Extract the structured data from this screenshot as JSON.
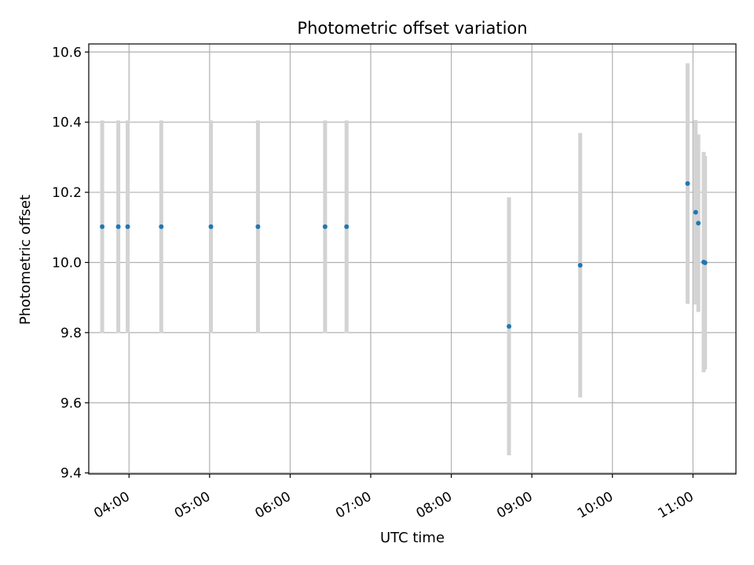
{
  "chart_data": {
    "type": "scatter",
    "title": "Photometric offset variation",
    "xlabel": "UTC time",
    "ylabel": "Photometric offset",
    "x_axis_kind": "time",
    "xlim": [
      "03:30",
      "11:32"
    ],
    "ylim": [
      9.397,
      10.623
    ],
    "x_ticks": [
      "04:00",
      "05:00",
      "06:00",
      "07:00",
      "08:00",
      "09:00",
      "10:00",
      "11:00"
    ],
    "y_ticks": [
      9.4,
      9.6,
      9.8,
      10.0,
      10.2,
      10.4,
      10.6
    ],
    "y_tick_labels": [
      "9.4",
      "9.6",
      "9.8",
      "10.0",
      "10.2",
      "10.4",
      "10.6"
    ],
    "grid": true,
    "error_bars": true,
    "colors": {
      "points": "#1f77b4",
      "error_bars": "#d3d3d3",
      "grid": "#b0b0b0"
    },
    "points": [
      {
        "x": "03:40",
        "y": 10.102,
        "err": 0.303
      },
      {
        "x": "03:52",
        "y": 10.102,
        "err": 0.303
      },
      {
        "x": "03:59",
        "y": 10.102,
        "err": 0.303
      },
      {
        "x": "04:24",
        "y": 10.102,
        "err": 0.303
      },
      {
        "x": "05:01",
        "y": 10.102,
        "err": 0.303
      },
      {
        "x": "05:36",
        "y": 10.102,
        "err": 0.303
      },
      {
        "x": "06:26",
        "y": 10.102,
        "err": 0.303
      },
      {
        "x": "06:42",
        "y": 10.102,
        "err": 0.303
      },
      {
        "x": "08:43",
        "y": 9.818,
        "err": 0.368
      },
      {
        "x": "09:36",
        "y": 9.992,
        "err": 0.377
      },
      {
        "x": "10:56",
        "y": 10.225,
        "err": 0.343
      },
      {
        "x": "11:02",
        "y": 10.143,
        "err": 0.263
      },
      {
        "x": "11:04",
        "y": 10.112,
        "err": 0.253
      },
      {
        "x": "11:08",
        "y": 10.001,
        "err": 0.314
      },
      {
        "x": "11:09",
        "y": 9.999,
        "err": 0.304
      }
    ]
  }
}
